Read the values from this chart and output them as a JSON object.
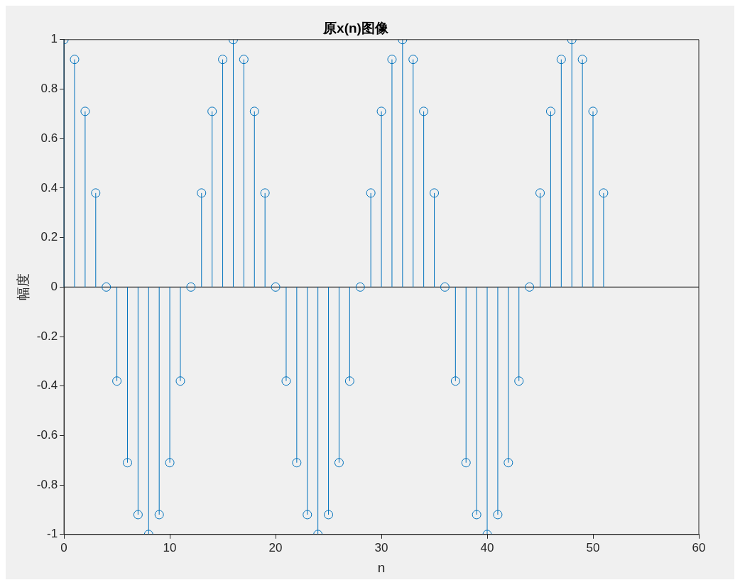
{
  "chart_data": {
    "type": "lollipop",
    "title": "原x(n)图像",
    "xlabel": "n",
    "ylabel": "幅度",
    "x": [
      0,
      1,
      2,
      3,
      4,
      5,
      6,
      7,
      8,
      9,
      10,
      11,
      12,
      13,
      14,
      15,
      16,
      17,
      18,
      19,
      20,
      21,
      22,
      23,
      24,
      25,
      26,
      27,
      28,
      29,
      30,
      31,
      32,
      33,
      34,
      35,
      36,
      37,
      38,
      39,
      40,
      41,
      42,
      43,
      44,
      45,
      46,
      47,
      48,
      49,
      50,
      51
    ],
    "values": [
      1,
      0.92,
      0.71,
      0.38,
      0,
      -0.38,
      -0.71,
      -0.92,
      -1,
      -0.92,
      -0.71,
      -0.38,
      0,
      0.38,
      0.71,
      0.92,
      1,
      0.92,
      0.71,
      0.38,
      0,
      -0.38,
      -0.71,
      -0.92,
      -1,
      -0.92,
      -0.71,
      -0.38,
      0,
      0.38,
      0.71,
      0.92,
      1,
      0.92,
      0.71,
      0.38,
      0,
      -0.38,
      -0.71,
      -0.92,
      -1,
      -0.92,
      -0.71,
      -0.38,
      0,
      0.38,
      0.71,
      0.92,
      1,
      0.92,
      0.71,
      0.38
    ],
    "color": "#0072bd",
    "marker": "circle",
    "xlim": [
      0,
      60
    ],
    "xticks": [
      0,
      10,
      20,
      30,
      40,
      50,
      60
    ],
    "ylim": [
      -1,
      1
    ],
    "yticks": [
      -1,
      -0.8,
      -0.6,
      -0.4,
      -0.2,
      0,
      0.2,
      0.4,
      0.6,
      0.8,
      1
    ]
  }
}
